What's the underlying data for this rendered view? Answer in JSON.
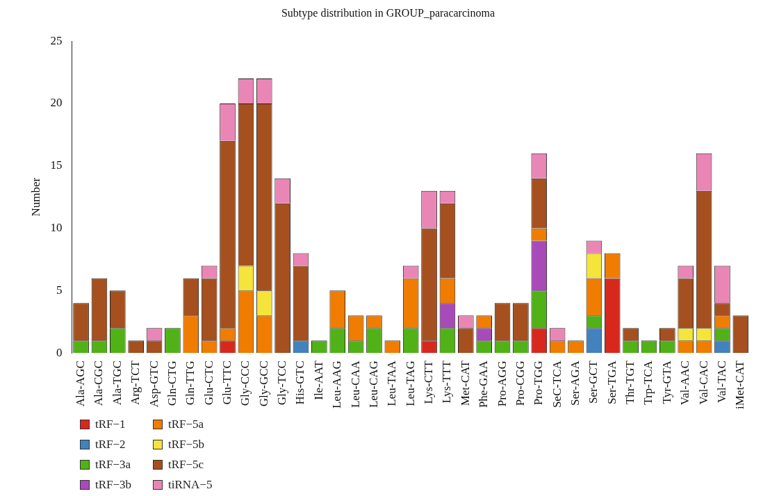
{
  "chart_data": {
    "type": "bar",
    "title": "Subtype distribution in GROUP_paracarcinoma",
    "ylabel": "Number",
    "stacked": true,
    "legend": "bottom left",
    "grid": false,
    "categories": [
      "Ala-AGC",
      "Ala-CGC",
      "Ala-TGC",
      "Arg-TCT",
      "Asp-GTC",
      "Gln-CTG",
      "Gln-TTG",
      "Glu-CTC",
      "Glu-TTC",
      "Gly-CCC",
      "Gly-GCC",
      "Gly-TCC",
      "His-GTC",
      "Ile-AAT",
      "Leu-AAG",
      "Leu-CAA",
      "Leu-CAG",
      "Leu-TAA",
      "Leu-TAG",
      "Lys-CTT",
      "Lys-TTT",
      "Met-CAT",
      "Phe-GAA",
      "Pro-AGG",
      "Pro-CGG",
      "Pro-TGG",
      "SeC-TCA",
      "Ser-AGA",
      "Ser-GCT",
      "Ser-TGA",
      "Thr-TGT",
      "Trp-TCA",
      "Tyr-GTA",
      "Val-AAC",
      "Val-CAC",
      "Val-TAC",
      "iMet-CAT"
    ],
    "ylim": [
      0,
      25
    ],
    "yticks": [
      0,
      5,
      10,
      15,
      20,
      25
    ],
    "series": [
      {
        "name": "tRF−1",
        "color": "#d8281e",
        "values": [
          0,
          0,
          0,
          0,
          0,
          0,
          0,
          0,
          1,
          0,
          0,
          0,
          0,
          0,
          0,
          0,
          0,
          0,
          0,
          1,
          0,
          0,
          0,
          0,
          0,
          2,
          0,
          0,
          0,
          6,
          0,
          0,
          0,
          0,
          0,
          0,
          0
        ]
      },
      {
        "name": "tRF−2",
        "color": "#4282bd",
        "values": [
          0,
          0,
          0,
          0,
          0,
          0,
          0,
          0,
          0,
          0,
          0,
          0,
          1,
          0,
          0,
          0,
          0,
          0,
          0,
          0,
          0,
          0,
          0,
          0,
          0,
          0,
          0,
          0,
          2,
          0,
          0,
          0,
          0,
          0,
          0,
          1,
          0
        ]
      },
      {
        "name": "tRF−3a",
        "color": "#50b216",
        "values": [
          1,
          1,
          2,
          0,
          0,
          2,
          0,
          0,
          0,
          0,
          0,
          0,
          0,
          1,
          2,
          1,
          2,
          0,
          2,
          0,
          2,
          0,
          1,
          1,
          1,
          3,
          0,
          0,
          1,
          0,
          1,
          1,
          1,
          0,
          0,
          1,
          0
        ]
      },
      {
        "name": "tRF−3b",
        "color": "#a84bb8",
        "values": [
          0,
          0,
          0,
          0,
          0,
          0,
          0,
          0,
          0,
          0,
          0,
          0,
          0,
          0,
          0,
          0,
          0,
          0,
          0,
          0,
          2,
          0,
          1,
          0,
          0,
          4,
          0,
          0,
          0,
          0,
          0,
          0,
          0,
          0,
          0,
          0,
          0
        ]
      },
      {
        "name": "tRF−5a",
        "color": "#f07c00",
        "values": [
          0,
          0,
          0,
          0,
          0,
          0,
          3,
          1,
          1,
          5,
          3,
          0,
          0,
          0,
          3,
          2,
          1,
          1,
          4,
          0,
          2,
          0,
          1,
          0,
          0,
          1,
          1,
          1,
          3,
          2,
          0,
          0,
          0,
          1,
          1,
          1,
          0
        ]
      },
      {
        "name": "tRF−5b",
        "color": "#f5e43a",
        "values": [
          0,
          0,
          0,
          0,
          0,
          0,
          0,
          0,
          0,
          2,
          2,
          0,
          0,
          0,
          0,
          0,
          0,
          0,
          0,
          0,
          0,
          0,
          0,
          0,
          0,
          0,
          0,
          0,
          2,
          0,
          0,
          0,
          0,
          1,
          1,
          0,
          0
        ]
      },
      {
        "name": "tRF−5c",
        "color": "#a5501e",
        "values": [
          3,
          5,
          3,
          1,
          1,
          0,
          3,
          5,
          15,
          13,
          15,
          12,
          6,
          0,
          0,
          0,
          0,
          0,
          0,
          9,
          6,
          2,
          0,
          3,
          3,
          4,
          0,
          0,
          0,
          0,
          1,
          0,
          1,
          4,
          11,
          1,
          3
        ]
      },
      {
        "name": "tiRNA−5",
        "color": "#ea86b6",
        "values": [
          0,
          0,
          0,
          0,
          1,
          0,
          0,
          1,
          3,
          2,
          2,
          2,
          1,
          0,
          0,
          0,
          0,
          0,
          1,
          3,
          1,
          1,
          0,
          0,
          0,
          2,
          1,
          0,
          1,
          0,
          0,
          0,
          0,
          1,
          3,
          3,
          0
        ]
      }
    ]
  }
}
